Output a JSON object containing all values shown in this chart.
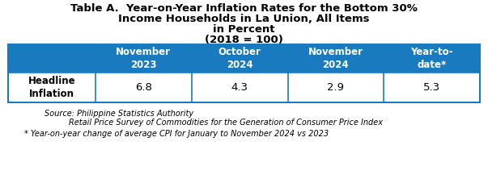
{
  "title_line1": "Table A.  Year-on-Year Inflation Rates for the Bottom 30%",
  "title_line2": "Income Households in La Union, All Items",
  "title_line3": "in Percent",
  "title_line4": "(2018 = 100)",
  "header_bg": "#1a7abf",
  "header_text_color": "#ffffff",
  "col_headers": [
    "November\n2023",
    "October\n2024",
    "November\n2024",
    "Year-to-\ndate*"
  ],
  "row_label": "Headline\nInflation",
  "row_values": [
    "6.8",
    "4.3",
    "2.9",
    "5.3"
  ],
  "source_line1": "Source: Philippine Statistics Authority",
  "source_line2": "Retail Price Survey of Commodities for the Generation of Consumer Price Index",
  "footnote": "* Year-on-year change of average CPI for January to November 2024 vs 2023",
  "table_border_color": "#1a7abf",
  "row_bg": "#ffffff",
  "row_label_fontsize": 8.5,
  "header_fontsize": 8.5,
  "value_fontsize": 9.5,
  "title_fontsize": 9.5,
  "source_fontsize": 7.0,
  "footnote_fontsize": 7.0
}
